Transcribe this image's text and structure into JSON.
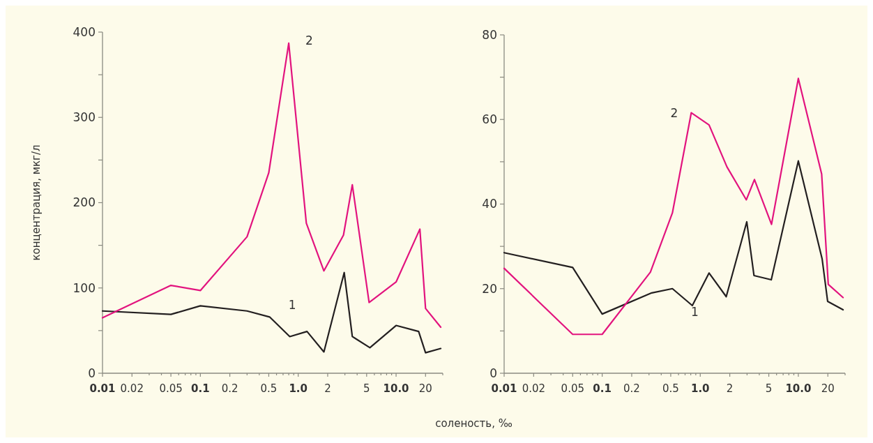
{
  "chart_data": [
    {
      "type": "line",
      "xlabel": "соленость, ‰",
      "ylabel": "концентрация, мкг/л",
      "log": "x",
      "xlim": [
        0.01,
        30
      ],
      "ylim": [
        0,
        400
      ],
      "xticks": [
        0.01,
        0.02,
        {
          "value": 0.03,
          "label": null
        },
        {
          "value": 0.04,
          "label": null
        },
        0.05,
        {
          "value": 0.06,
          "label": null
        },
        {
          "value": 0.07,
          "label": null
        },
        {
          "value": 0.08,
          "label": null
        },
        {
          "value": 0.09,
          "label": null
        },
        0.1,
        0.2,
        {
          "value": 0.3,
          "label": null
        },
        {
          "value": 0.4,
          "label": null
        },
        0.5,
        {
          "value": 0.6,
          "label": null
        },
        {
          "value": 0.7,
          "label": null
        },
        {
          "value": 0.8,
          "label": null
        },
        {
          "value": 0.9,
          "label": null
        },
        {
          "value": 1,
          "label": "1.0"
        },
        2,
        {
          "value": 3,
          "label": null
        },
        {
          "value": 4,
          "label": null
        },
        5,
        {
          "value": 6,
          "label": null
        },
        {
          "value": 7,
          "label": null
        },
        {
          "value": 8,
          "label": null
        },
        {
          "value": 9,
          "label": null
        },
        {
          "value": 10,
          "label": "10.0"
        },
        20,
        {
          "value": 30,
          "label": null
        }
      ],
      "yticks": [
        0,
        {
          "value": 50,
          "label": null
        },
        100,
        {
          "value": 150,
          "label": null
        },
        200,
        {
          "value": 250,
          "label": null
        },
        300,
        {
          "value": 350,
          "label": null
        },
        400
      ],
      "series": [
        {
          "name": "1",
          "color": "#231f20",
          "x": [
            0.01,
            0.05,
            0.1,
            0.3,
            0.51,
            0.82,
            1.23,
            1.83,
            2.95,
            3.57,
            5.4,
            10,
            17,
            20,
            28.6
          ],
          "values": [
            73,
            69,
            79,
            73,
            66,
            43,
            49,
            25,
            118,
            43,
            30,
            56,
            49,
            24,
            29
          ]
        },
        {
          "name": "2",
          "color": "#e2137e",
          "x": [
            0.01,
            0.05,
            0.1,
            0.3,
            0.5,
            0.8,
            1.21,
            1.83,
            2.9,
            3.57,
            5.3,
            10,
            17.5,
            20,
            28.6
          ],
          "values": [
            65,
            103,
            97,
            160,
            235,
            387,
            176,
            120,
            162,
            221,
            83,
            107,
            169,
            76,
            54
          ]
        }
      ]
    },
    {
      "type": "line",
      "log": "x",
      "xlim": [
        0.01,
        30
      ],
      "ylim": [
        0,
        80
      ],
      "xticks": [
        0.01,
        0.02,
        {
          "value": 0.03,
          "label": null
        },
        {
          "value": 0.04,
          "label": null
        },
        0.05,
        {
          "value": 0.06,
          "label": null
        },
        {
          "value": 0.07,
          "label": null
        },
        {
          "value": 0.08,
          "label": null
        },
        {
          "value": 0.09,
          "label": null
        },
        0.1,
        0.2,
        {
          "value": 0.3,
          "label": null
        },
        {
          "value": 0.4,
          "label": null
        },
        0.5,
        {
          "value": 0.6,
          "label": null
        },
        {
          "value": 0.7,
          "label": null
        },
        {
          "value": 0.8,
          "label": null
        },
        {
          "value": 0.9,
          "label": null
        },
        {
          "value": 1,
          "label": "1.0"
        },
        2,
        {
          "value": 3,
          "label": null
        },
        {
          "value": 4,
          "label": null
        },
        5,
        {
          "value": 6,
          "label": null
        },
        {
          "value": 7,
          "label": null
        },
        {
          "value": 8,
          "label": null
        },
        {
          "value": 9,
          "label": null
        },
        {
          "value": 10,
          "label": "10.0"
        },
        20,
        {
          "value": 30,
          "label": null
        }
      ],
      "yticks": [
        0,
        {
          "value": 10,
          "label": null
        },
        20,
        {
          "value": 30,
          "label": null
        },
        40,
        {
          "value": 50,
          "label": null
        },
        60,
        {
          "value": 70,
          "label": null
        },
        80
      ],
      "series": [
        {
          "name": "1",
          "color": "#231f20",
          "x": [
            0.01,
            0.05,
            0.1,
            0.32,
            0.52,
            0.83,
            1.23,
            1.84,
            2.98,
            3.53,
            5.3,
            10,
            17.5,
            19.9,
            28.6
          ],
          "values": [
            28.5,
            25,
            14,
            19,
            20,
            16,
            23.7,
            18.1,
            35.8,
            23.1,
            22.1,
            50.2,
            27,
            17,
            15
          ]
        },
        {
          "name": "2",
          "color": "#e2137e",
          "x": [
            0.01,
            0.05,
            0.1,
            0.31,
            0.52,
            0.81,
            1.23,
            1.87,
            2.95,
            3.57,
            5.33,
            10,
            17.3,
            20.2,
            28.6
          ],
          "values": [
            24.8,
            9.2,
            9.2,
            23.9,
            37.9,
            61.6,
            58.7,
            48.8,
            41,
            45.8,
            35.2,
            69.7,
            47.1,
            21,
            17.9
          ]
        }
      ]
    }
  ]
}
